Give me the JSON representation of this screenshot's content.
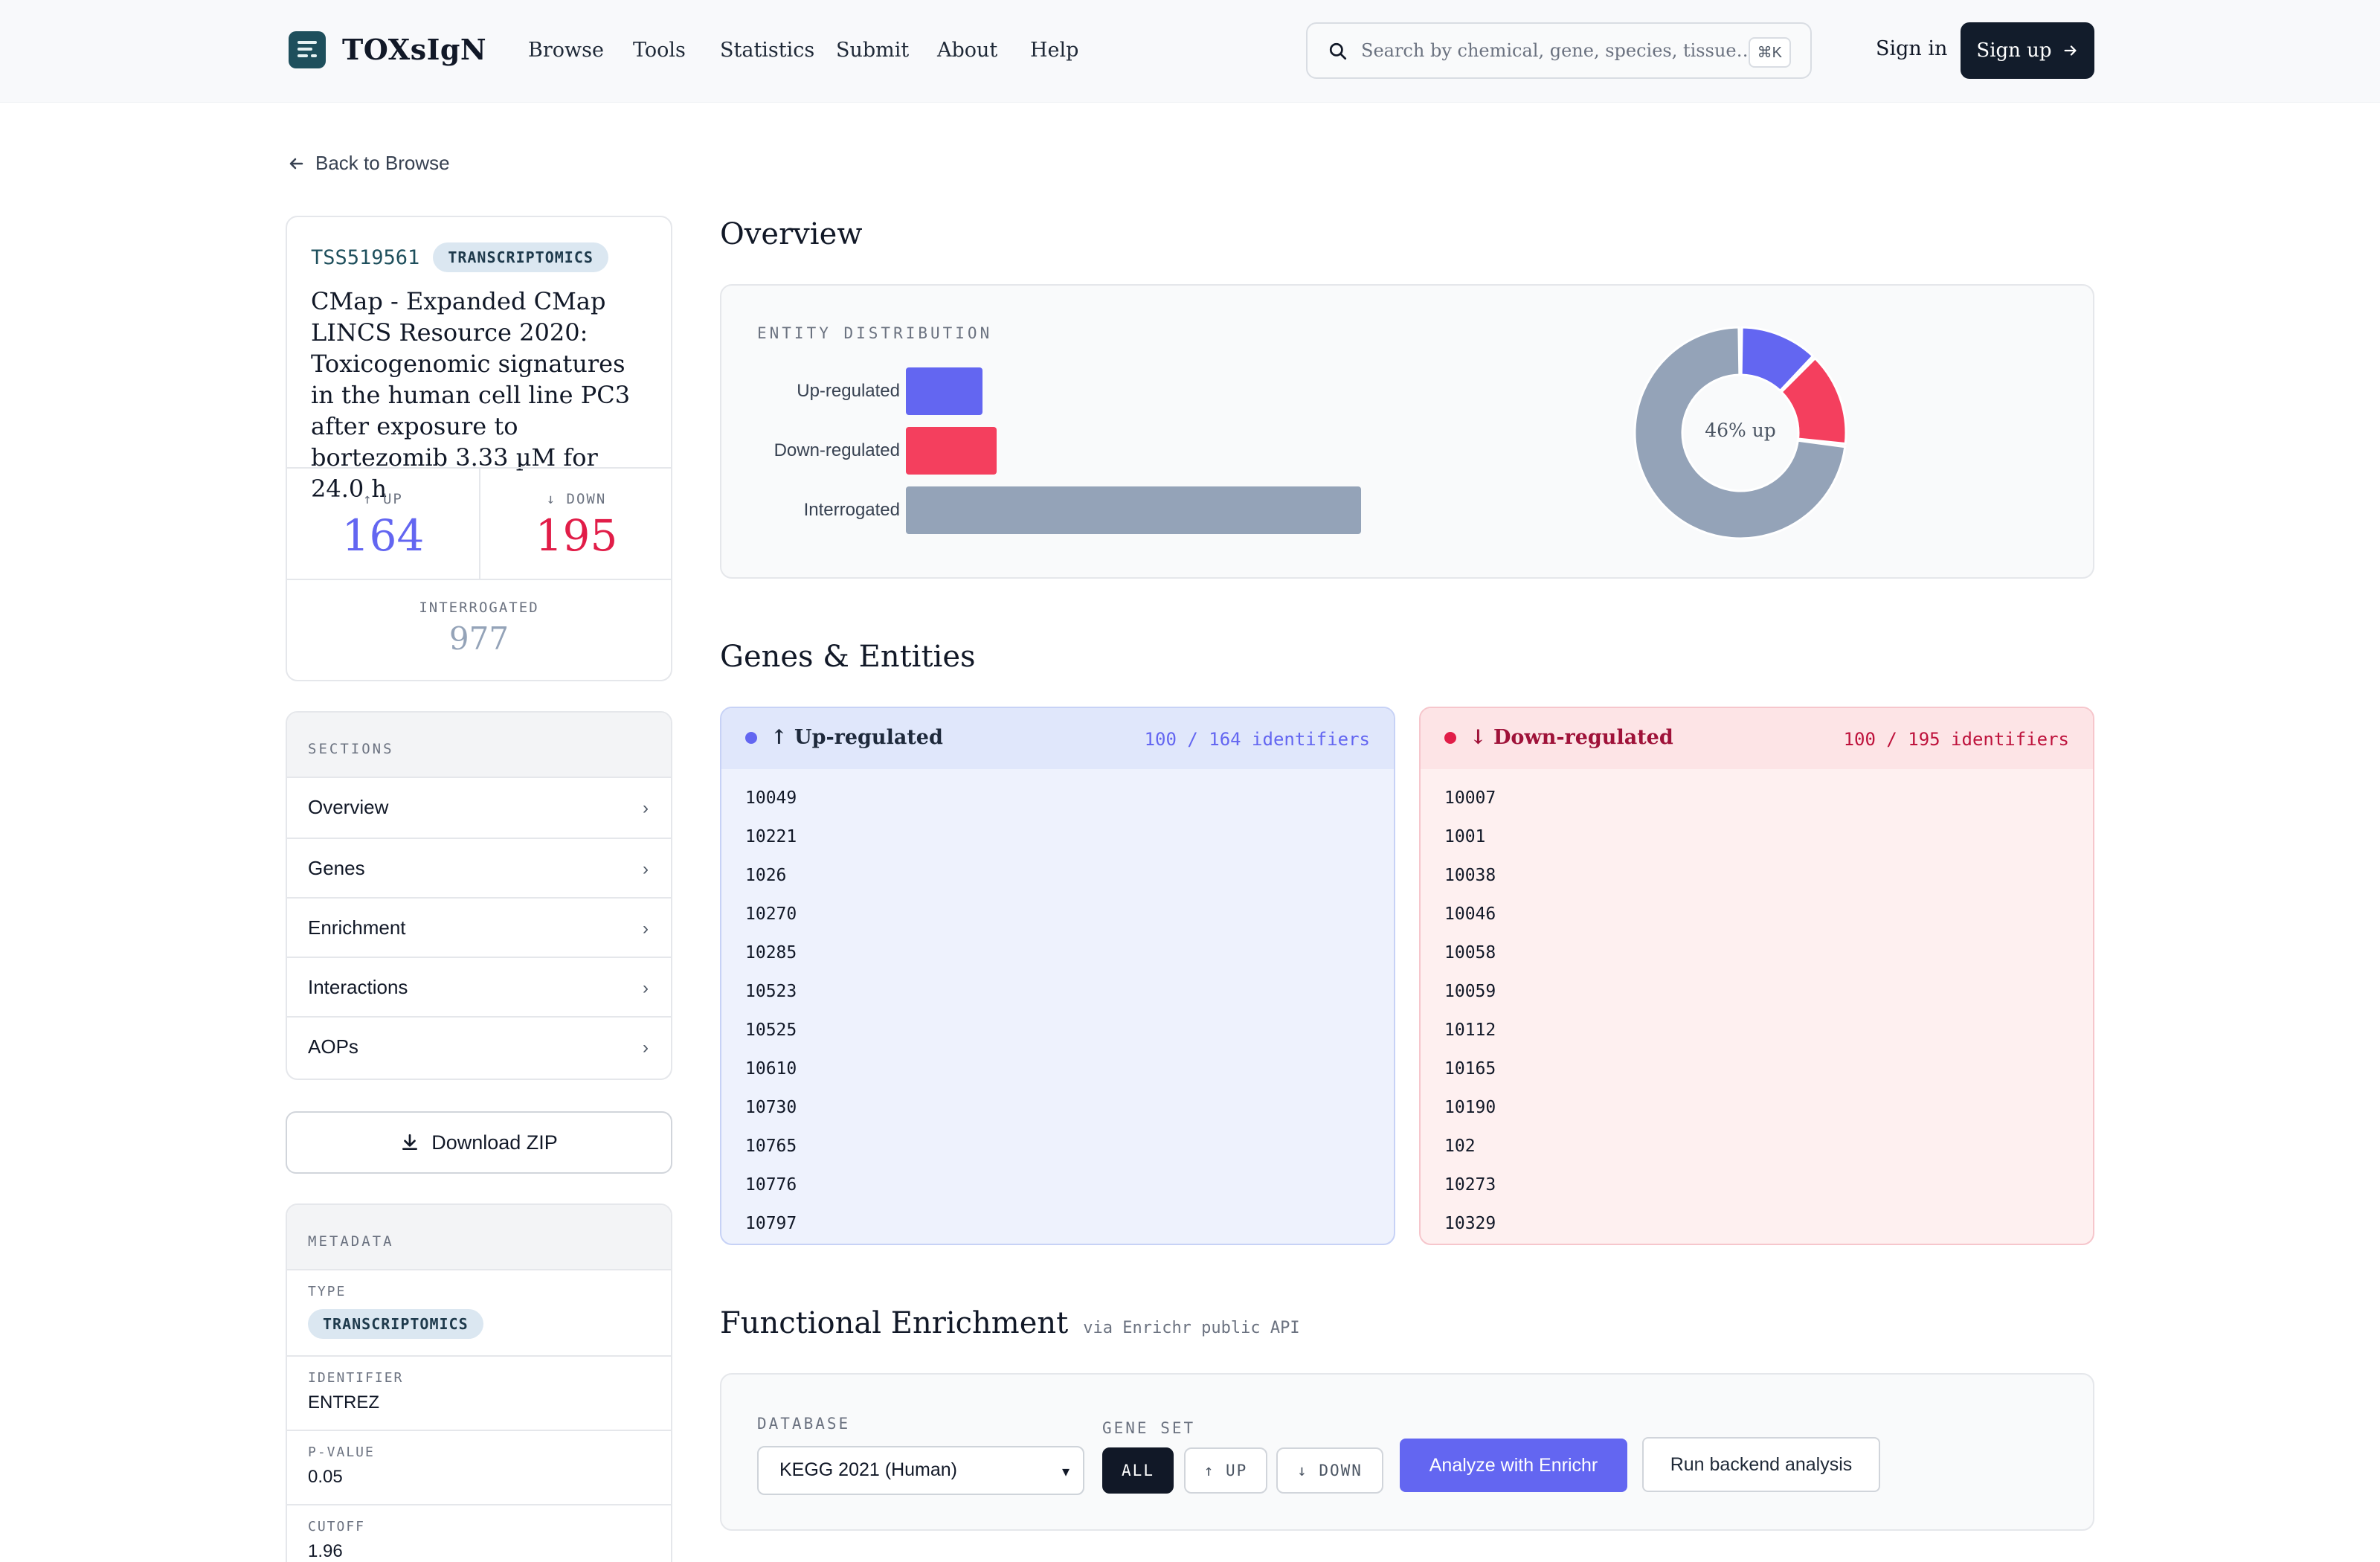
{
  "header": {
    "logo_text": "TOXsIgN",
    "nav": [
      "Browse",
      "Tools",
      "Statistics",
      "Submit",
      "About",
      "Help"
    ],
    "search_placeholder": "Search by chemical, gene, species, tissue…",
    "search_shortcut": "⌘K",
    "signin": "Sign in",
    "signup": "Sign up"
  },
  "back_link": "Back to Browse",
  "study": {
    "id": "TSS519561",
    "type_badge": "TRANSCRIPTOMICS",
    "title": "CMap - Expanded CMap LINCS Resource 2020: Toxicogenomic signatures in the human cell line PC3 after exposure to bortezomib 3.33 µM for 24.0 h",
    "up_label": "↑ UP",
    "up_value": "164",
    "down_label": "↓ DOWN",
    "down_value": "195",
    "interrogated_label": "INTERROGATED",
    "interrogated_value": "977"
  },
  "sections": {
    "title": "SECTIONS",
    "items": [
      "Overview",
      "Genes",
      "Enrichment",
      "Interactions",
      "AOPs"
    ]
  },
  "download_label": "Download ZIP",
  "metadata": {
    "title": "METADATA",
    "type_key": "TYPE",
    "type_value": "TRANSCRIPTOMICS",
    "identifier_key": "IDENTIFIER",
    "identifier_value": "ENTREZ",
    "pvalue_key": "P-VALUE",
    "pvalue_value": "0.05",
    "cutoff_key": "CUTOFF",
    "cutoff_value": "1.96"
  },
  "overview": {
    "heading": "Overview",
    "dist_title": "ENTITY DISTRIBUTION",
    "donut_label": "46% up"
  },
  "chart_data": [
    {
      "type": "bar",
      "title": "ENTITY DISTRIBUTION",
      "categories": [
        "Up-regulated",
        "Down-regulated",
        "Interrogated"
      ],
      "values": [
        164,
        195,
        977
      ],
      "colors": [
        "#6366f1",
        "#f43f5e",
        "#94a3b8"
      ]
    },
    {
      "type": "pie",
      "categories": [
        "Up-regulated",
        "Down-regulated",
        "Interrogated"
      ],
      "values": [
        164,
        195,
        977
      ],
      "colors": [
        "#6366f1",
        "#f43f5e",
        "#94a3b8"
      ],
      "center_label": "46% up"
    }
  ],
  "genes": {
    "heading": "Genes & Entities",
    "up": {
      "title": "↑ Up-regulated",
      "count": "100 / 164 identifiers",
      "items": [
        "10049",
        "10221",
        "1026",
        "10270",
        "10285",
        "10523",
        "10525",
        "10610",
        "10730",
        "10765",
        "10776",
        "10797"
      ]
    },
    "down": {
      "title": "↓ Down-regulated",
      "count": "100 / 195 identifiers",
      "items": [
        "10007",
        "1001",
        "10038",
        "10046",
        "10058",
        "10059",
        "10112",
        "10165",
        "10190",
        "102",
        "10273",
        "10329"
      ]
    }
  },
  "enrichment": {
    "heading": "Functional Enrichment",
    "subtitle": "via Enrichr public API",
    "database_label": "DATABASE",
    "database_value": "KEGG 2021 (Human)",
    "geneset_label": "GENE SET",
    "geneset_options": [
      "ALL",
      "↑ UP",
      "↓ DOWN"
    ],
    "geneset_selected": "ALL",
    "analyze_button": "Analyze with Enrichr",
    "backend_button": "Run backend analysis"
  },
  "colors": {
    "up": "#6366f1",
    "down": "#f43f5e",
    "interrogated": "#94a3b8",
    "brand": "#1e4f5c"
  }
}
